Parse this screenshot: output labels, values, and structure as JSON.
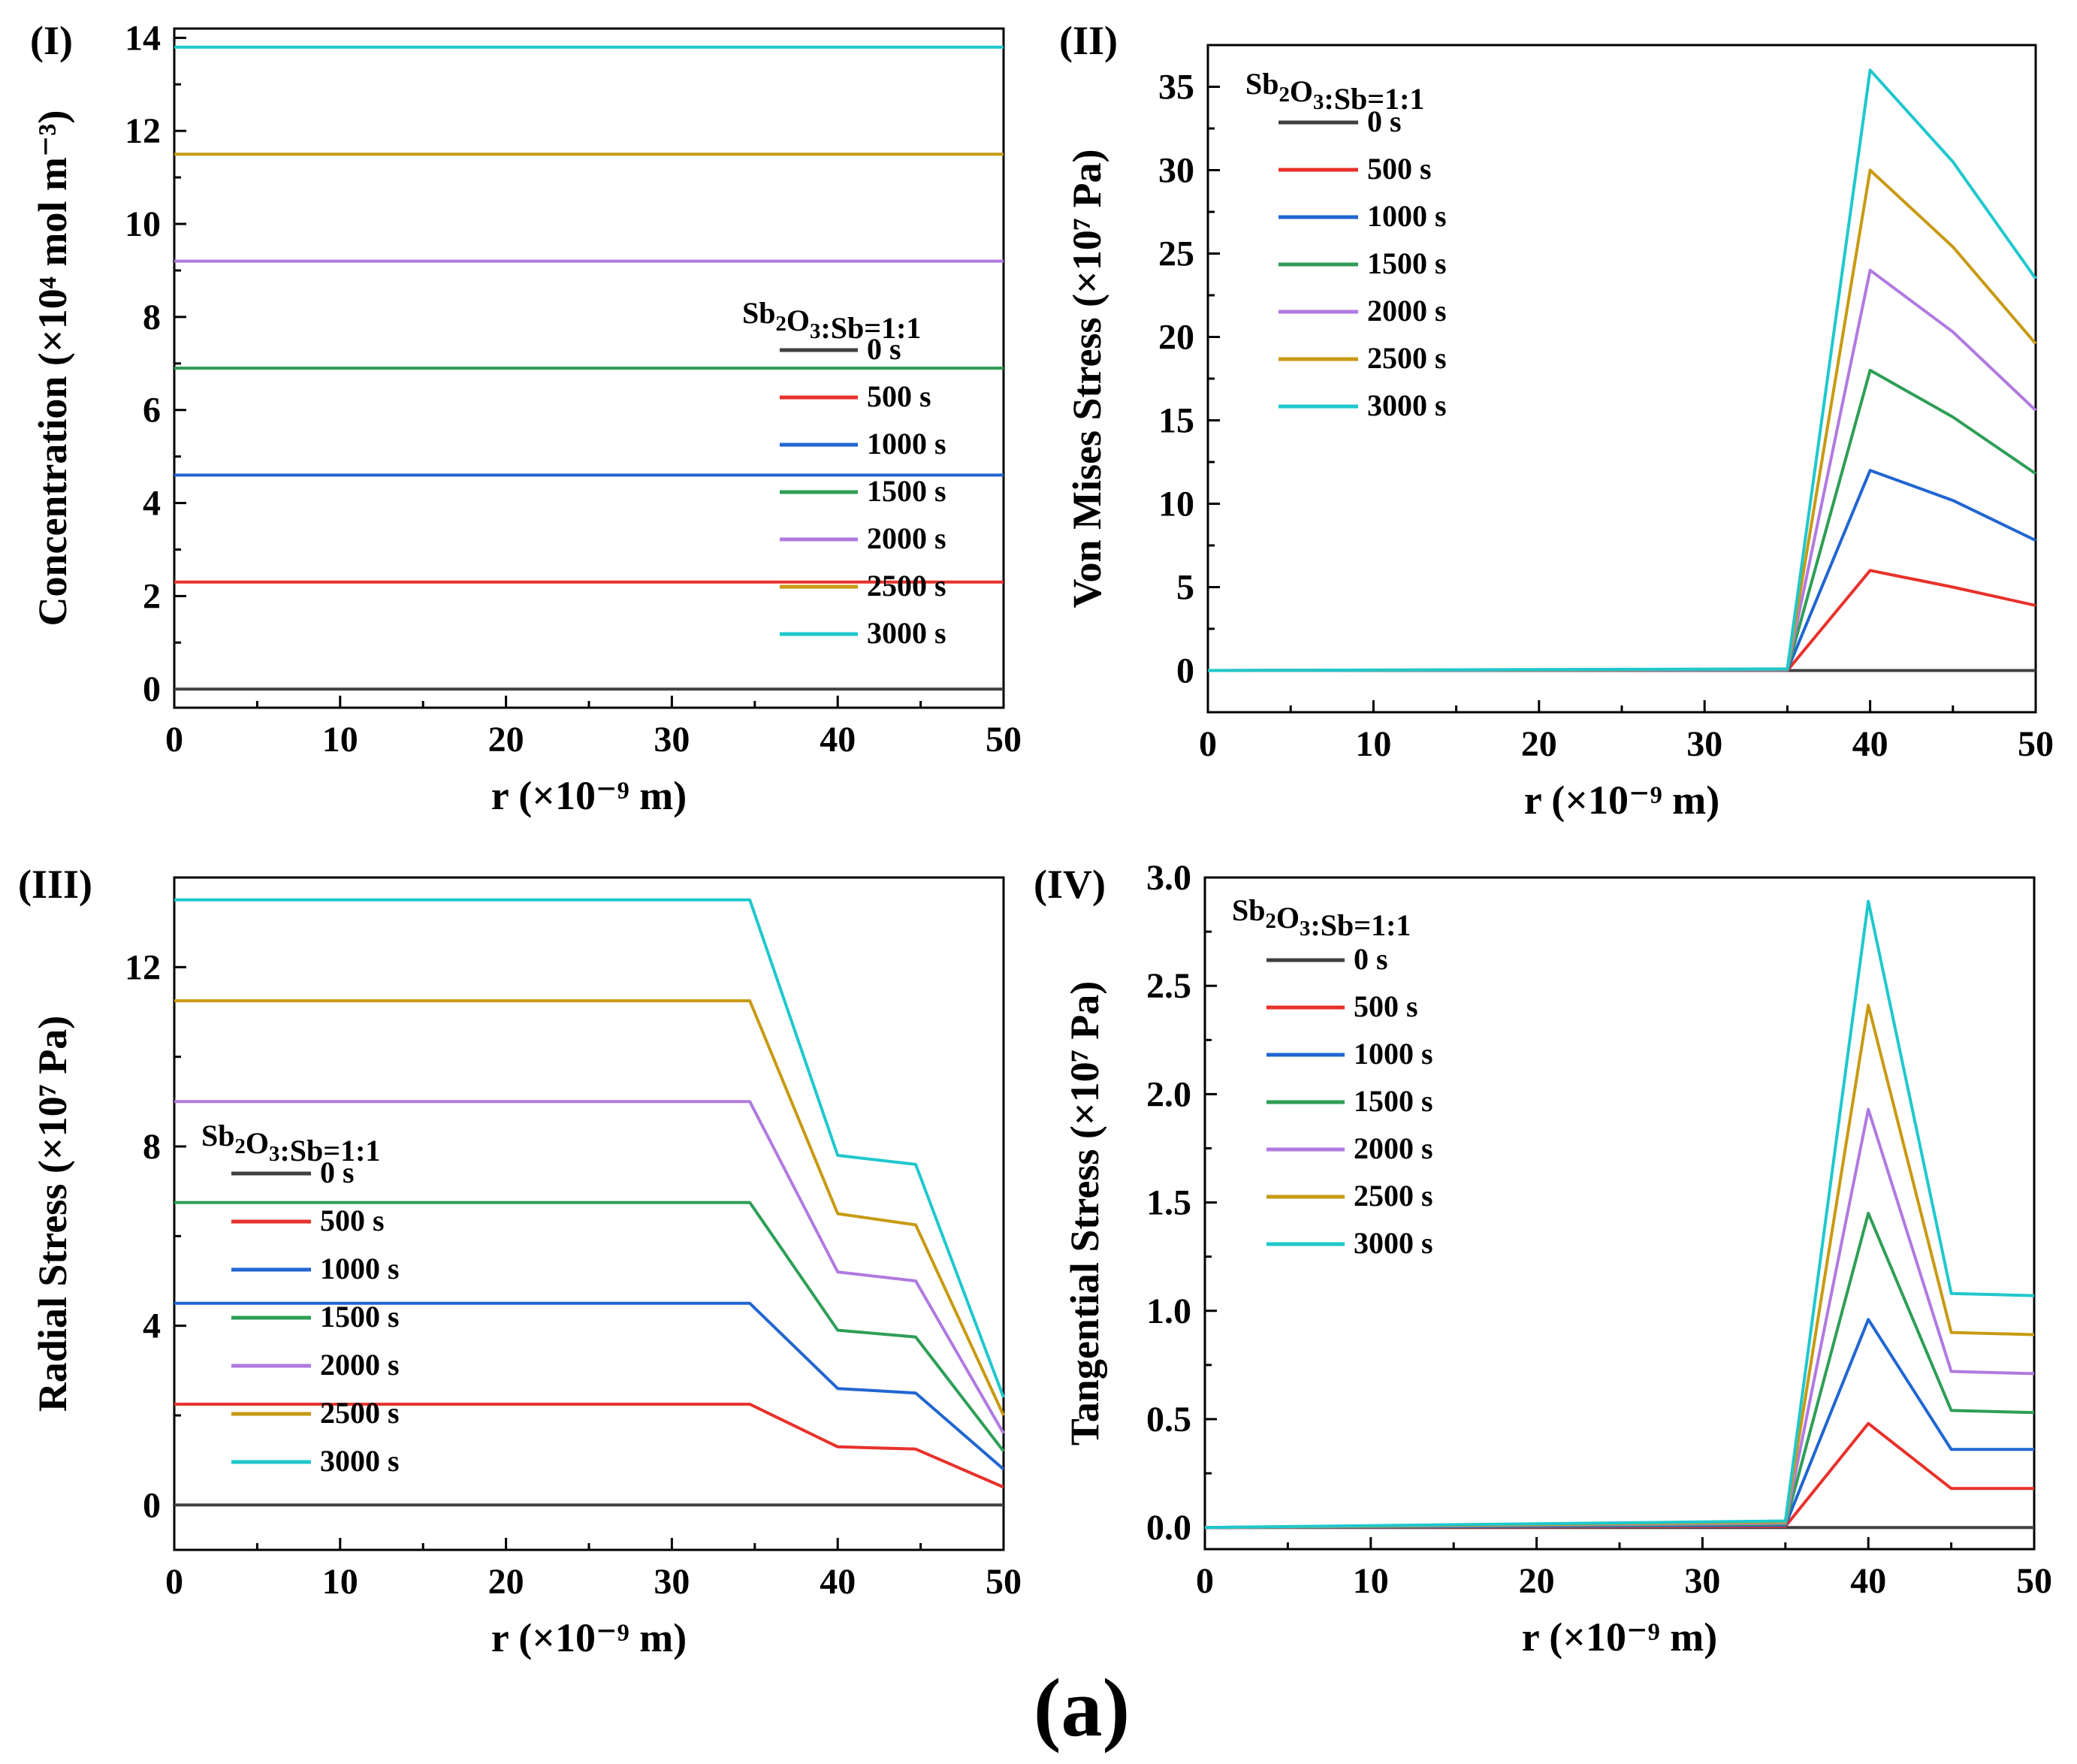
{
  "figure_label": "(a)",
  "colors": {
    "0 s": "#404040",
    "500 s": "#e8312b",
    "1000 s": "#2166d1",
    "1500 s": "#2e9e56",
    "2000 s": "#b07ae0",
    "2500 s": "#c89a12",
    "3000 s": "#1fc8cc"
  },
  "chart_data": [
    {
      "id": "I",
      "panel_label": "(I)",
      "type": "line",
      "xlabel": "r (×10⁻⁹ m)",
      "ylabel": "Concentration (×10⁴ mol m⁻³)",
      "xlim": [
        0,
        50
      ],
      "ylim": [
        -0.4,
        14.2
      ],
      "xticks": [
        0,
        10,
        20,
        30,
        40,
        50
      ],
      "yticks": [
        0,
        2,
        4,
        6,
        8,
        10,
        12,
        14
      ],
      "legend_title": "Sb2O3:Sb=1:1",
      "legend_position": "center-right",
      "series": [
        {
          "name": "0 s",
          "x": [
            0,
            50
          ],
          "y": [
            0,
            0
          ]
        },
        {
          "name": "500 s",
          "x": [
            0,
            50
          ],
          "y": [
            2.3,
            2.3
          ]
        },
        {
          "name": "1000 s",
          "x": [
            0,
            50
          ],
          "y": [
            4.6,
            4.6
          ]
        },
        {
          "name": "1500 s",
          "x": [
            0,
            50
          ],
          "y": [
            6.9,
            6.9
          ]
        },
        {
          "name": "2000 s",
          "x": [
            0,
            50
          ],
          "y": [
            9.2,
            9.2
          ]
        },
        {
          "name": "2500 s",
          "x": [
            0,
            50
          ],
          "y": [
            11.5,
            11.5
          ]
        },
        {
          "name": "3000 s",
          "x": [
            0,
            50
          ],
          "y": [
            13.8,
            13.8
          ]
        }
      ]
    },
    {
      "id": "II",
      "panel_label": "(II)",
      "type": "line",
      "xlabel": "r (×10⁻⁹ m)",
      "ylabel": "Von Mises Stress (×10⁷ Pa)",
      "xlim": [
        0,
        50
      ],
      "ylim": [
        -2.5,
        37.5
      ],
      "xticks": [
        0,
        10,
        20,
        30,
        40,
        50
      ],
      "yticks": [
        0,
        5,
        10,
        15,
        20,
        25,
        30,
        35
      ],
      "legend_title": "Sb2O3:Sb=1:1",
      "legend_position": "top-left",
      "series": [
        {
          "name": "0 s",
          "x": [
            0,
            35,
            40,
            45,
            50
          ],
          "y": [
            0,
            0,
            0,
            0,
            0
          ]
        },
        {
          "name": "500 s",
          "x": [
            0,
            35,
            40,
            45,
            50
          ],
          "y": [
            0,
            0,
            6,
            5,
            3.9
          ]
        },
        {
          "name": "1000 s",
          "x": [
            0,
            35,
            40,
            45,
            50
          ],
          "y": [
            0,
            0.02,
            12,
            10.2,
            7.8
          ]
        },
        {
          "name": "1500 s",
          "x": [
            0,
            35,
            40,
            45,
            50
          ],
          "y": [
            0,
            0.04,
            18,
            15.2,
            11.8
          ]
        },
        {
          "name": "2000 s",
          "x": [
            0,
            35,
            40,
            45,
            50
          ],
          "y": [
            0,
            0.06,
            24,
            20.3,
            15.6
          ]
        },
        {
          "name": "2500 s",
          "x": [
            0,
            35,
            40,
            45,
            50
          ],
          "y": [
            0,
            0.08,
            30,
            25.4,
            19.6
          ]
        },
        {
          "name": "3000 s",
          "x": [
            0,
            35,
            40,
            45,
            50
          ],
          "y": [
            0,
            0.1,
            36,
            30.5,
            23.5
          ]
        }
      ]
    },
    {
      "id": "III",
      "panel_label": "(III)",
      "type": "line",
      "xlabel": "r (×10⁻⁹ m)",
      "ylabel": "Radial Stress (×10⁷ Pa)",
      "xlim": [
        0,
        50
      ],
      "ylim": [
        -1,
        14
      ],
      "xticks": [
        0,
        10,
        20,
        30,
        40,
        50
      ],
      "yticks": [
        0,
        4,
        8,
        12
      ],
      "legend_title": "Sb2O3:Sb=1:1",
      "legend_position": "center-left",
      "series": [
        {
          "name": "0 s",
          "x": [
            0,
            34.7,
            40,
            44.7,
            50
          ],
          "y": [
            0,
            0,
            0,
            0,
            0
          ]
        },
        {
          "name": "500 s",
          "x": [
            0,
            34.7,
            40,
            44.7,
            50
          ],
          "y": [
            2.25,
            2.25,
            1.3,
            1.25,
            0.4
          ]
        },
        {
          "name": "1000 s",
          "x": [
            0,
            34.7,
            40,
            44.7,
            50
          ],
          "y": [
            4.5,
            4.5,
            2.6,
            2.5,
            0.8
          ]
        },
        {
          "name": "1500 s",
          "x": [
            0,
            34.7,
            40,
            44.7,
            50
          ],
          "y": [
            6.75,
            6.75,
            3.9,
            3.75,
            1.2
          ]
        },
        {
          "name": "2000 s",
          "x": [
            0,
            34.7,
            40,
            44.7,
            50
          ],
          "y": [
            9.0,
            9.0,
            5.2,
            5.0,
            1.6
          ]
        },
        {
          "name": "2500 s",
          "x": [
            0,
            34.7,
            40,
            44.7,
            50
          ],
          "y": [
            11.25,
            11.25,
            6.5,
            6.25,
            2.0
          ]
        },
        {
          "name": "3000 s",
          "x": [
            0,
            34.7,
            40,
            44.7,
            50
          ],
          "y": [
            13.5,
            13.5,
            7.8,
            7.6,
            2.4
          ]
        }
      ]
    },
    {
      "id": "IV",
      "panel_label": "(IV)",
      "type": "line",
      "xlabel": "r (×10⁻⁹ m)",
      "ylabel": "Tangential Stress (×10⁷ Pa)",
      "xlim": [
        0,
        50
      ],
      "ylim": [
        -0.1,
        3.0
      ],
      "xticks": [
        0,
        10,
        20,
        30,
        40,
        50
      ],
      "yticks": [
        0,
        0.5,
        1.0,
        1.5,
        2.0,
        2.5,
        3.0
      ],
      "legend_title": "Sb2O3:Sb=1:1",
      "legend_position": "top-left",
      "series": [
        {
          "name": "0 s",
          "x": [
            0,
            35,
            40,
            45,
            50
          ],
          "y": [
            0,
            0,
            0,
            0,
            0
          ]
        },
        {
          "name": "500 s",
          "x": [
            0,
            35,
            40,
            45,
            50
          ],
          "y": [
            0,
            0.005,
            0.48,
            0.18,
            0.18
          ]
        },
        {
          "name": "1000 s",
          "x": [
            0,
            35,
            40,
            45,
            50
          ],
          "y": [
            0,
            0.01,
            0.96,
            0.36,
            0.36
          ]
        },
        {
          "name": "1500 s",
          "x": [
            0,
            35,
            40,
            45,
            50
          ],
          "y": [
            0,
            0.015,
            1.45,
            0.54,
            0.53
          ]
        },
        {
          "name": "2000 s",
          "x": [
            0,
            35,
            40,
            45,
            50
          ],
          "y": [
            0,
            0.02,
            1.93,
            0.72,
            0.71
          ]
        },
        {
          "name": "2500 s",
          "x": [
            0,
            35,
            40,
            45,
            50
          ],
          "y": [
            0,
            0.025,
            2.41,
            0.9,
            0.89
          ]
        },
        {
          "name": "3000 s",
          "x": [
            0,
            35,
            40,
            45,
            50
          ],
          "y": [
            0,
            0.03,
            2.89,
            1.08,
            1.07
          ]
        }
      ]
    }
  ]
}
